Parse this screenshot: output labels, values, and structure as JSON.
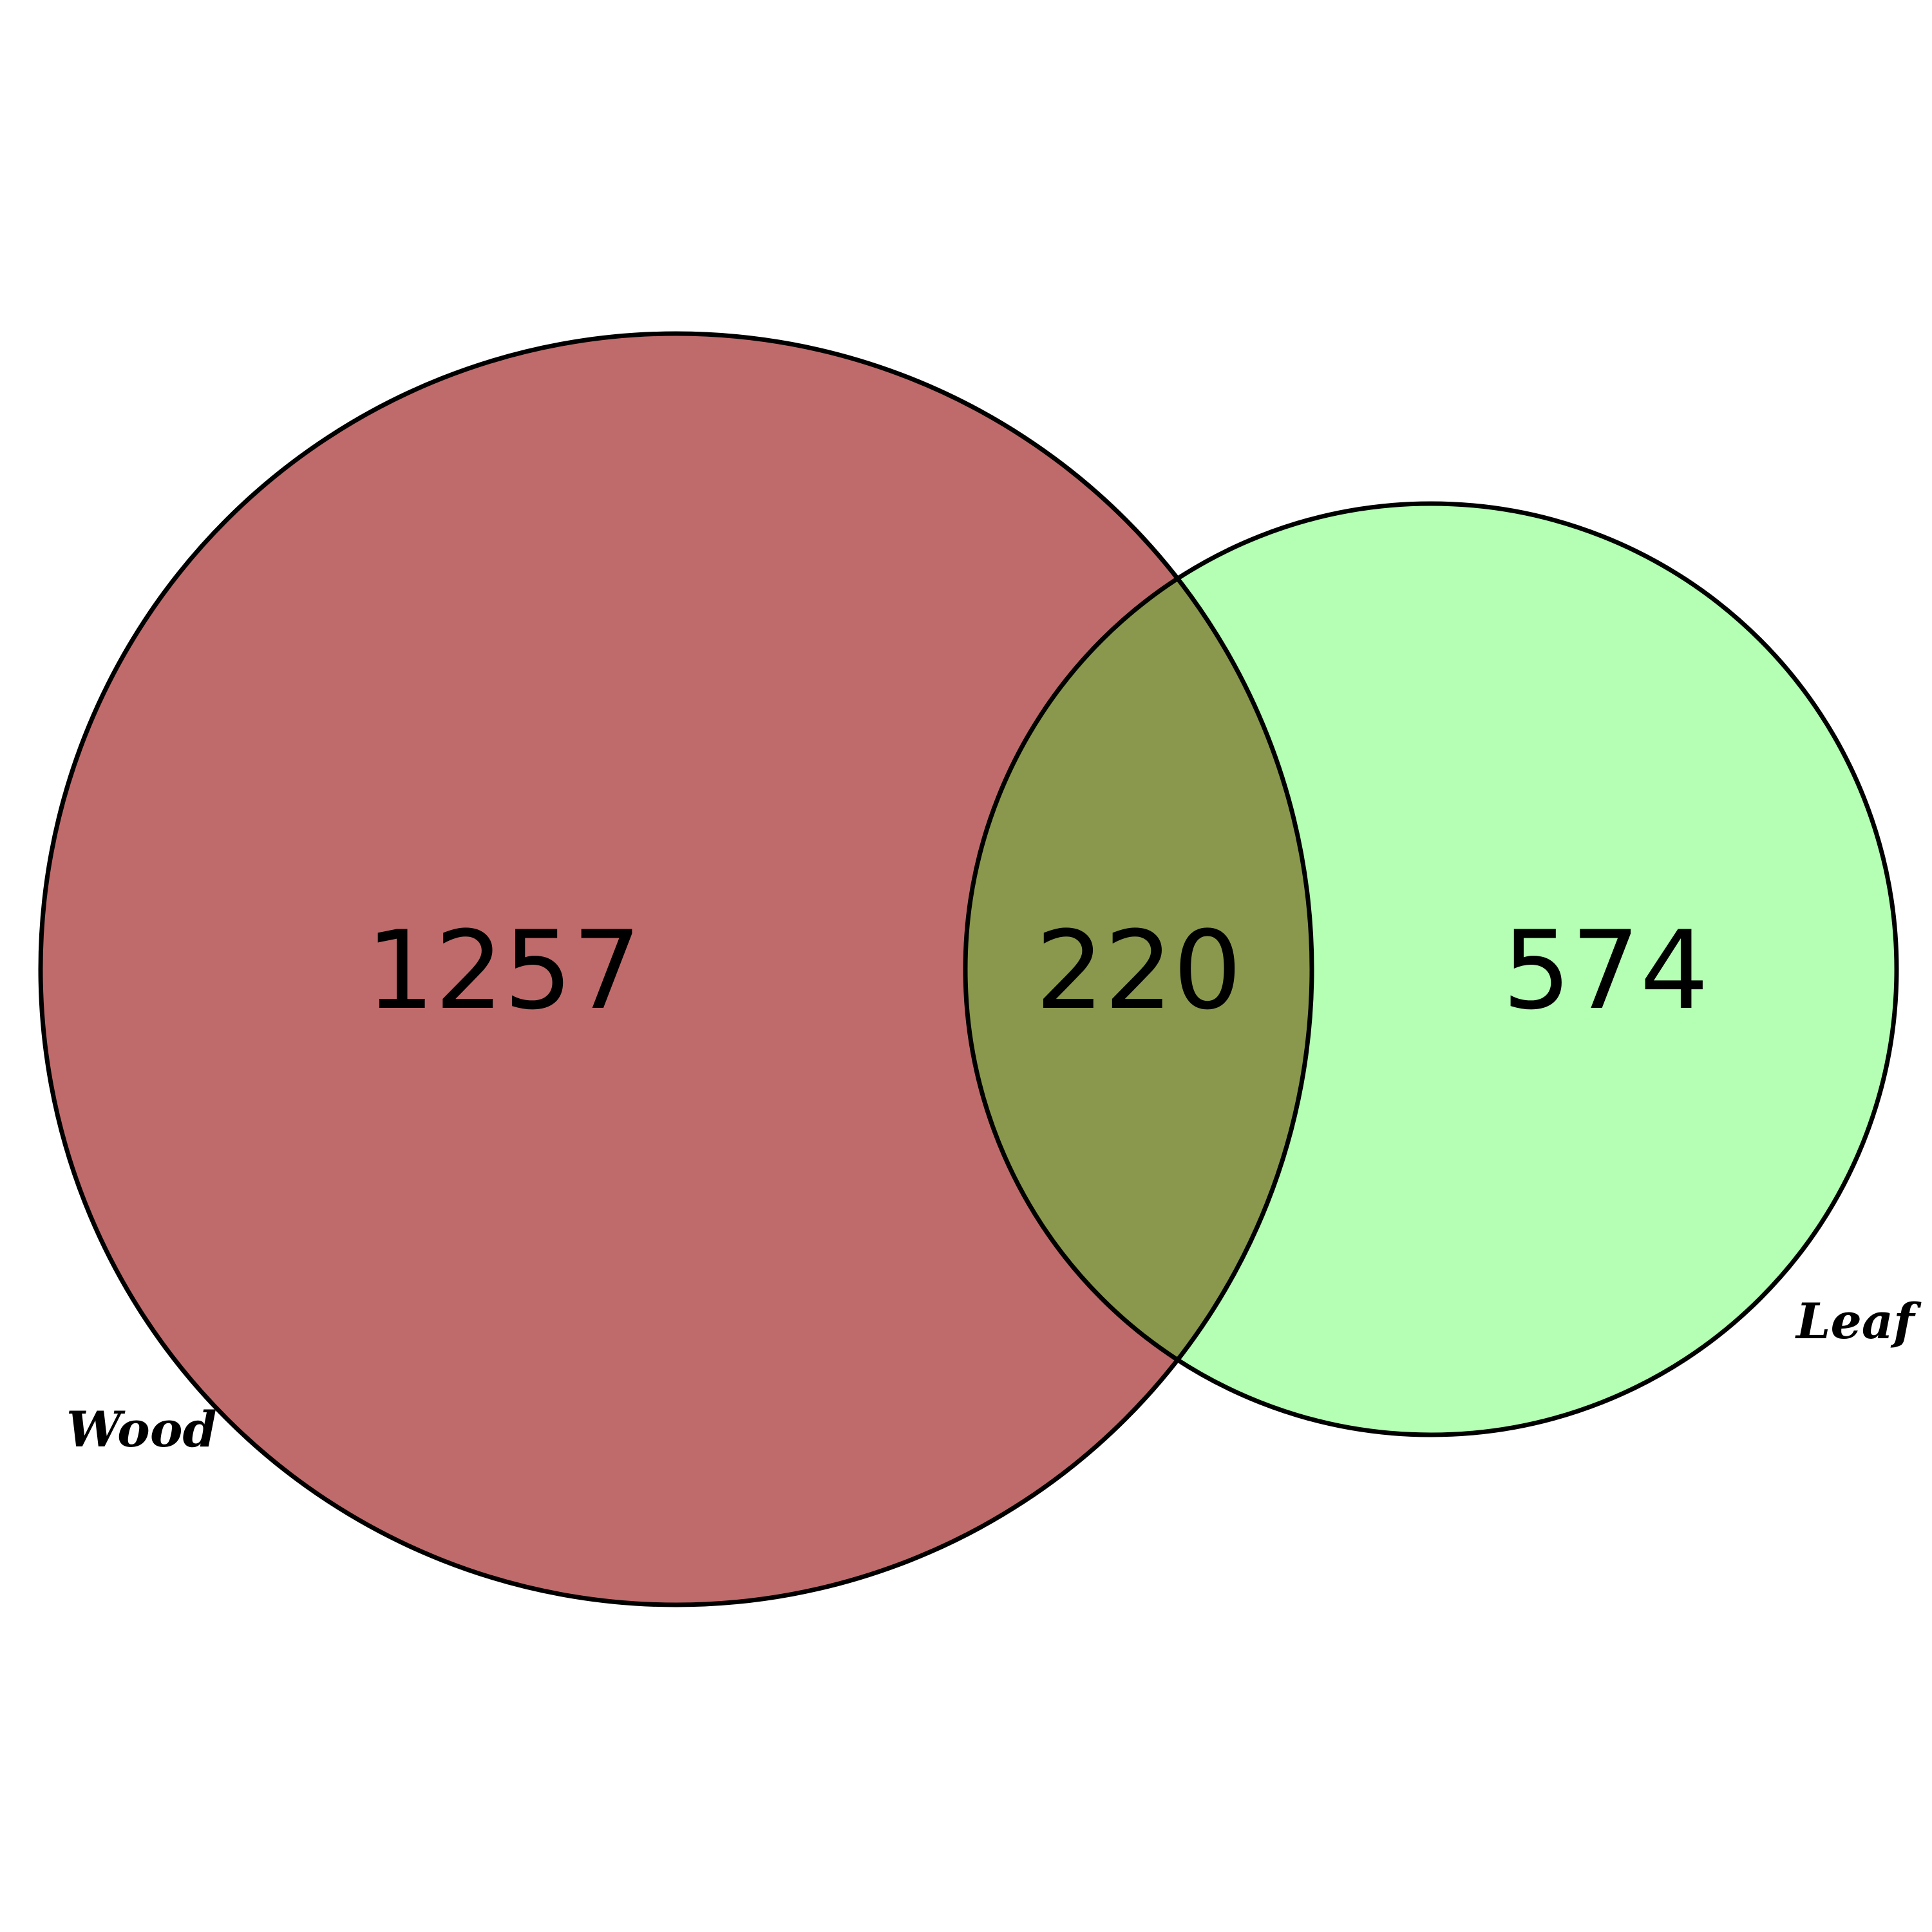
{
  "sets": [
    {
      "name": "Wood",
      "only_count": "1257",
      "color": "#c06b6b"
    },
    {
      "name": "Leaf",
      "only_count": "574",
      "color": "#b4ffb4"
    }
  ],
  "overlap": {
    "count": "220",
    "color": "#8a984d"
  },
  "outline_color": "#000000"
}
